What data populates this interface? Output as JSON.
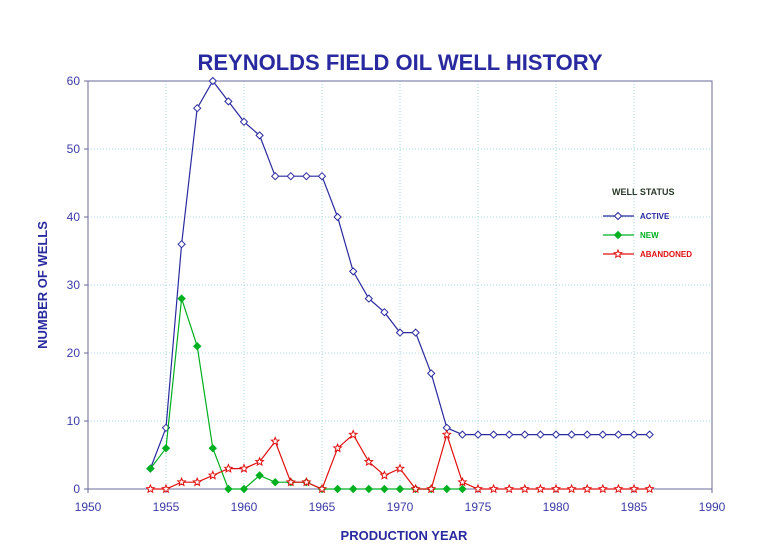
{
  "chart_data": {
    "type": "line",
    "title": "REYNOLDS FIELD OIL WELL HISTORY",
    "xlabel": "PRODUCTION YEAR",
    "ylabel": "NUMBER OF WELLS",
    "xlim": [
      1950,
      1990
    ],
    "ylim": [
      0,
      60
    ],
    "xticks": [
      1950,
      1955,
      1960,
      1965,
      1970,
      1975,
      1980,
      1985,
      1990
    ],
    "yticks": [
      0,
      10,
      20,
      30,
      40,
      50,
      60
    ],
    "grid": true,
    "legend": {
      "title": "WELL STATUS",
      "position": "right"
    },
    "series": [
      {
        "name": "ACTIVE",
        "color": "#2a2aa0",
        "marker": "diamond-open",
        "x": [
          1954,
          1955,
          1956,
          1957,
          1958,
          1959,
          1960,
          1961,
          1962,
          1963,
          1964,
          1965,
          1966,
          1967,
          1968,
          1969,
          1970,
          1971,
          1972,
          1973,
          1974,
          1975,
          1976,
          1977,
          1978,
          1979,
          1980,
          1981,
          1982,
          1983,
          1984,
          1985,
          1986
        ],
        "y": [
          3,
          9,
          36,
          56,
          60,
          57,
          54,
          52,
          46,
          46,
          46,
          46,
          40,
          32,
          28,
          26,
          23,
          23,
          17,
          9,
          8,
          8,
          8,
          8,
          8,
          8,
          8,
          8,
          8,
          8,
          8,
          8,
          8
        ]
      },
      {
        "name": "NEW",
        "color": "#00b020",
        "marker": "diamond-filled",
        "x": [
          1954,
          1955,
          1956,
          1957,
          1958,
          1959,
          1960,
          1961,
          1962,
          1963,
          1964,
          1965,
          1966,
          1967,
          1968,
          1969,
          1970,
          1971,
          1972,
          1973,
          1974
        ],
        "y": [
          3,
          6,
          28,
          21,
          6,
          0,
          0,
          2,
          1,
          1,
          1,
          0,
          0,
          0,
          0,
          0,
          0,
          0,
          0,
          0,
          0
        ]
      },
      {
        "name": "ABANDONED",
        "color": "#e01010",
        "marker": "star-open",
        "x": [
          1954,
          1955,
          1956,
          1957,
          1958,
          1959,
          1960,
          1961,
          1962,
          1963,
          1964,
          1965,
          1966,
          1967,
          1968,
          1969,
          1970,
          1971,
          1972,
          1973,
          1974,
          1975,
          1976,
          1977,
          1978,
          1979,
          1980,
          1981,
          1982,
          1983,
          1984,
          1985,
          1986
        ],
        "y": [
          0,
          0,
          1,
          1,
          2,
          3,
          3,
          4,
          7,
          1,
          1,
          0,
          6,
          8,
          4,
          2,
          3,
          0,
          0,
          8,
          1,
          0,
          0,
          0,
          0,
          0,
          0,
          0,
          0,
          0,
          0,
          0,
          0
        ]
      }
    ]
  }
}
